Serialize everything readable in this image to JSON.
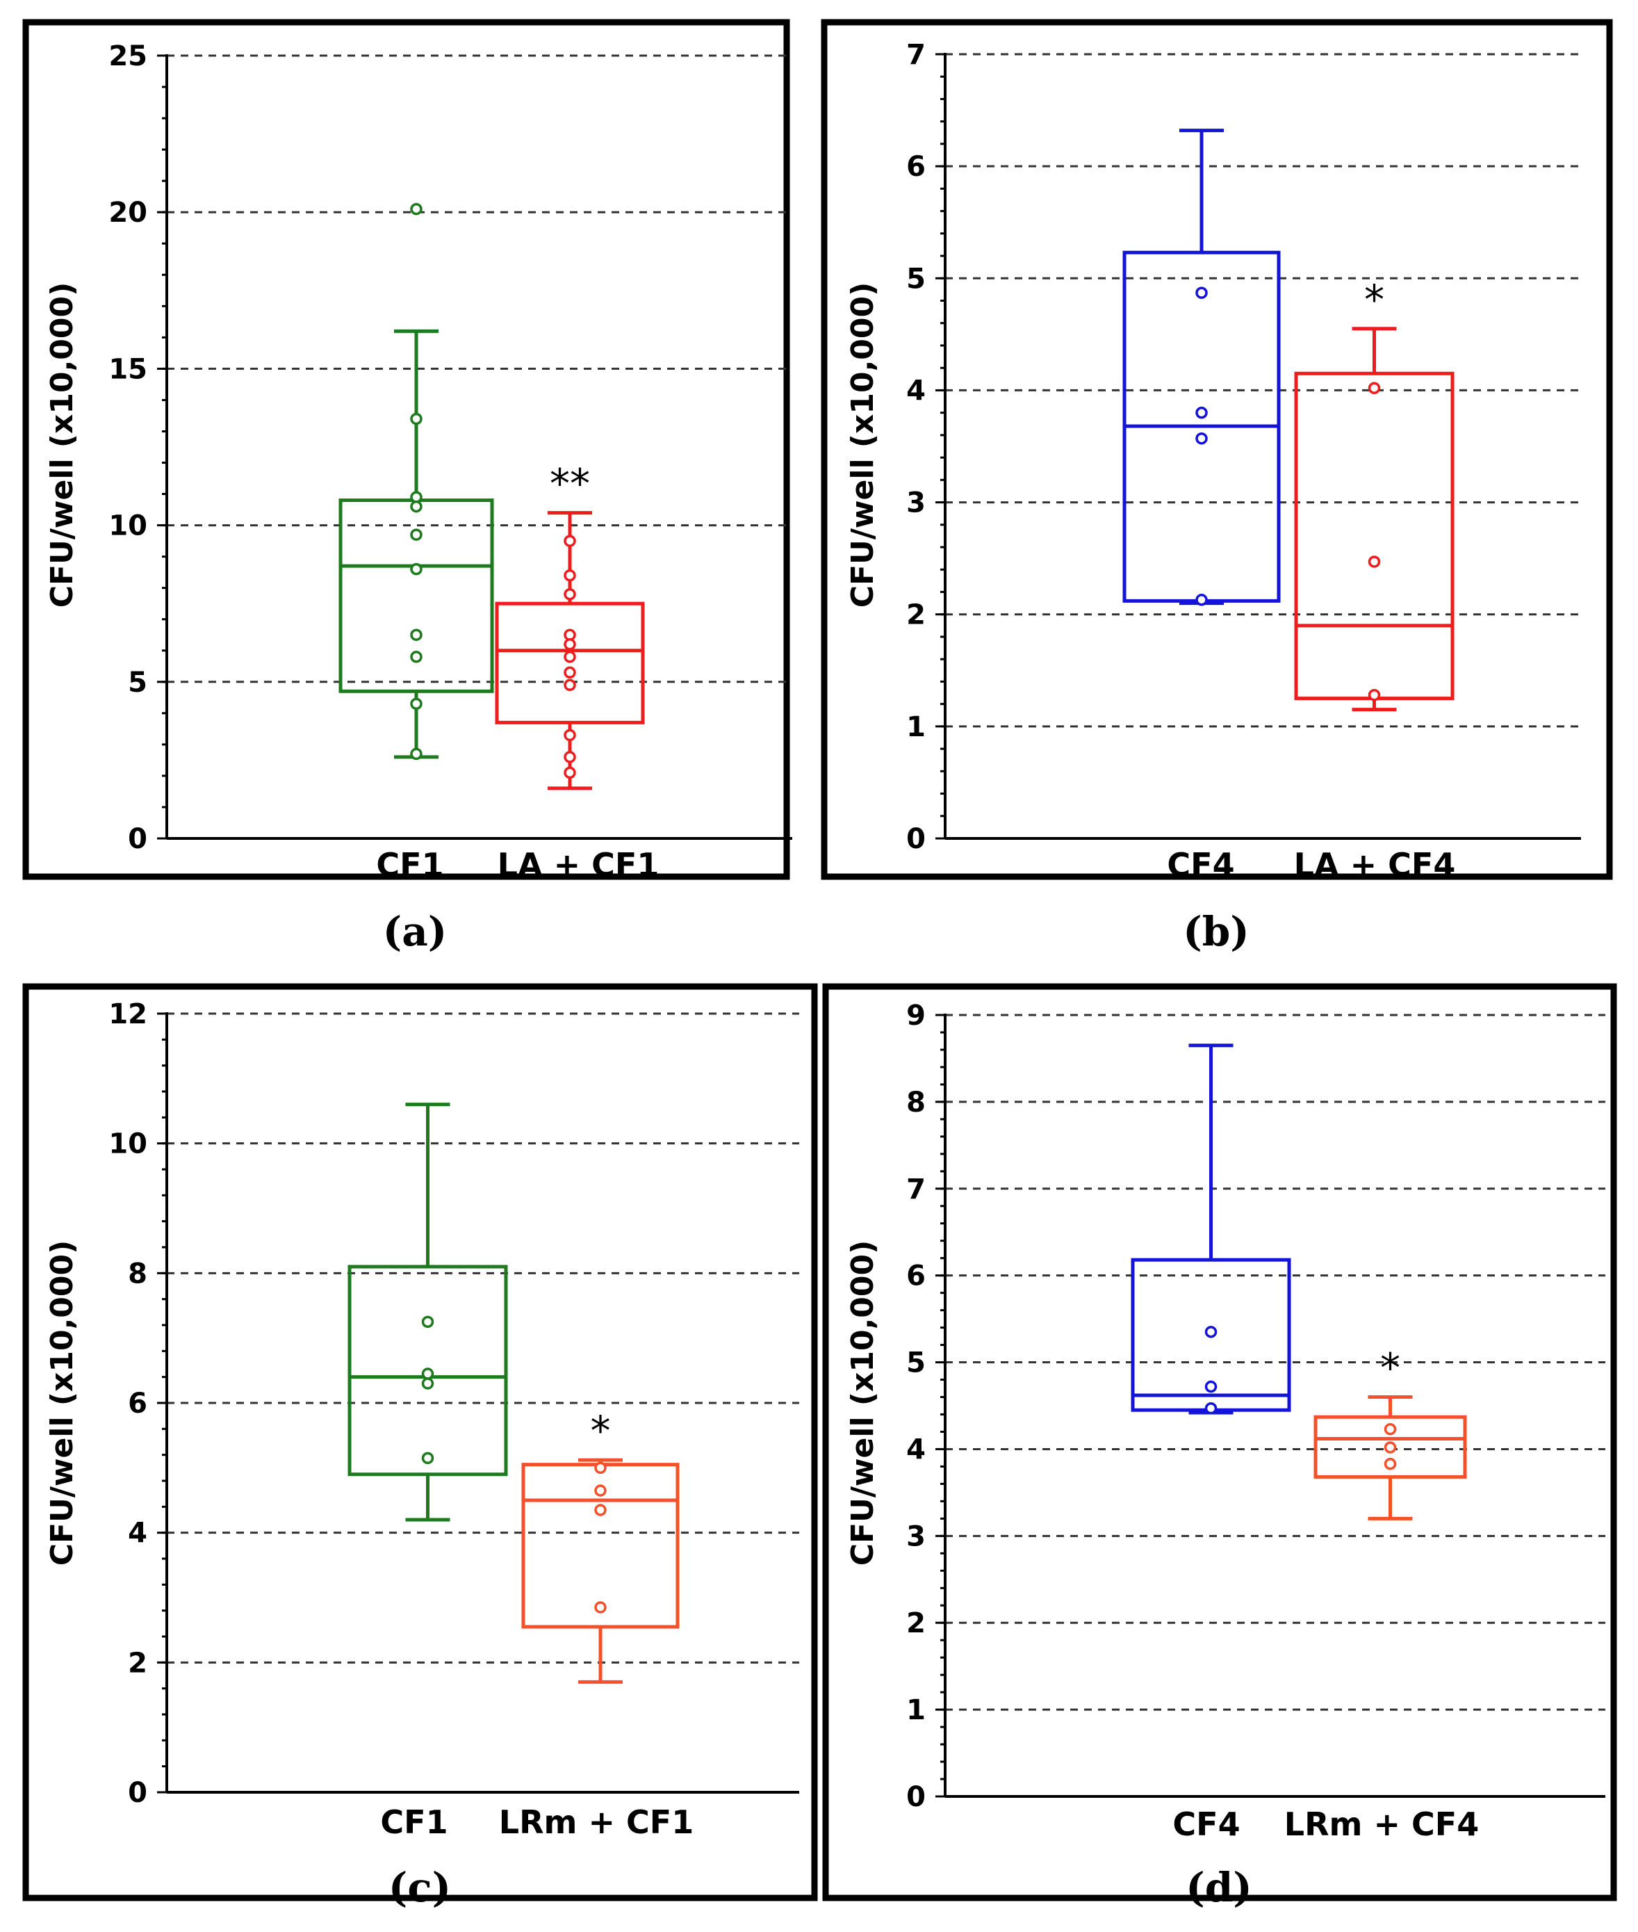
{
  "figure": {
    "panels": [
      "(a)",
      "(b)",
      "(c)",
      "(d)"
    ]
  },
  "colors": {
    "green": "#1e7a1e",
    "red": "#ee1c1c",
    "blue": "#1414d8",
    "orange": "#f4502a"
  },
  "chart_data": [
    {
      "type": "box",
      "panel_label": "(a)",
      "ylabel": "CFU/well (x10,000)",
      "ylim": [
        0,
        25
      ],
      "yticks": [
        0,
        5,
        10,
        15,
        20,
        25
      ],
      "grid": true,
      "categories": [
        "CF1",
        "LA + CF1"
      ],
      "boxes": [
        {
          "name": "CF1",
          "color": "green",
          "whisker_low": 2.6,
          "q1": 4.7,
          "median": 8.7,
          "q3": 10.8,
          "whisker_high": 16.2,
          "points": [
            20.1,
            13.4,
            10.9,
            10.6,
            9.7,
            8.6,
            6.5,
            5.8,
            4.3,
            2.7
          ],
          "significance": ""
        },
        {
          "name": "LA + CF1",
          "color": "red",
          "whisker_low": 1.6,
          "q1": 3.7,
          "median": 6.0,
          "q3": 7.5,
          "whisker_high": 10.4,
          "points": [
            9.5,
            8.4,
            7.8,
            6.5,
            6.2,
            5.8,
            5.3,
            4.9,
            3.3,
            2.6,
            2.1
          ],
          "significance": "**"
        }
      ]
    },
    {
      "type": "box",
      "panel_label": "(b)",
      "ylabel": "CFU/well (x10,000)",
      "ylim": [
        0,
        7
      ],
      "yticks": [
        0,
        1,
        2,
        3,
        4,
        5,
        6,
        7
      ],
      "grid": true,
      "categories": [
        "CF4",
        "LA + CF4"
      ],
      "boxes": [
        {
          "name": "CF4",
          "color": "blue",
          "whisker_low": 2.1,
          "q1": 2.12,
          "median": 3.68,
          "q3": 5.23,
          "whisker_high": 6.32,
          "points": [
            4.87,
            3.8,
            3.57,
            2.13
          ],
          "significance": ""
        },
        {
          "name": "LA + CF4",
          "color": "red",
          "whisker_low": 1.15,
          "q1": 1.25,
          "median": 1.9,
          "q3": 4.15,
          "whisker_high": 4.55,
          "points": [
            4.02,
            2.47,
            1.28
          ],
          "significance": "*"
        }
      ]
    },
    {
      "type": "box",
      "panel_label": "(c)",
      "ylabel": "CFU/well (x10,000)",
      "ylim": [
        0,
        12
      ],
      "yticks": [
        0,
        2,
        4,
        6,
        8,
        10,
        12
      ],
      "grid": true,
      "categories": [
        "CF1",
        "LRm + CF1"
      ],
      "boxes": [
        {
          "name": "CF1",
          "color": "green",
          "whisker_low": 4.2,
          "q1": 4.9,
          "median": 6.4,
          "q3": 8.1,
          "whisker_high": 10.6,
          "points": [
            7.25,
            6.45,
            6.3,
            5.15
          ],
          "significance": ""
        },
        {
          "name": "LRm + CF1",
          "color": "orange",
          "whisker_low": 1.7,
          "q1": 2.55,
          "median": 4.5,
          "q3": 5.05,
          "whisker_high": 5.12,
          "points": [
            5.0,
            4.65,
            4.35,
            2.85
          ],
          "significance": "*"
        }
      ]
    },
    {
      "type": "box",
      "panel_label": "(d)",
      "ylabel": "CFU/well (x10,000)",
      "ylim": [
        0,
        9
      ],
      "yticks": [
        0,
        1,
        2,
        3,
        4,
        5,
        6,
        7,
        8,
        9
      ],
      "grid": true,
      "categories": [
        "CF4",
        "LRm + CF4"
      ],
      "boxes": [
        {
          "name": "CF4",
          "color": "blue",
          "whisker_low": 4.42,
          "q1": 4.45,
          "median": 4.62,
          "q3": 6.18,
          "whisker_high": 8.65,
          "points": [
            5.35,
            4.72,
            4.47
          ],
          "significance": ""
        },
        {
          "name": "LRm + CF4",
          "color": "orange",
          "whisker_low": 3.2,
          "q1": 3.68,
          "median": 4.12,
          "q3": 4.37,
          "whisker_high": 4.6,
          "points": [
            4.23,
            4.02,
            3.83
          ],
          "significance": "*"
        }
      ]
    }
  ]
}
